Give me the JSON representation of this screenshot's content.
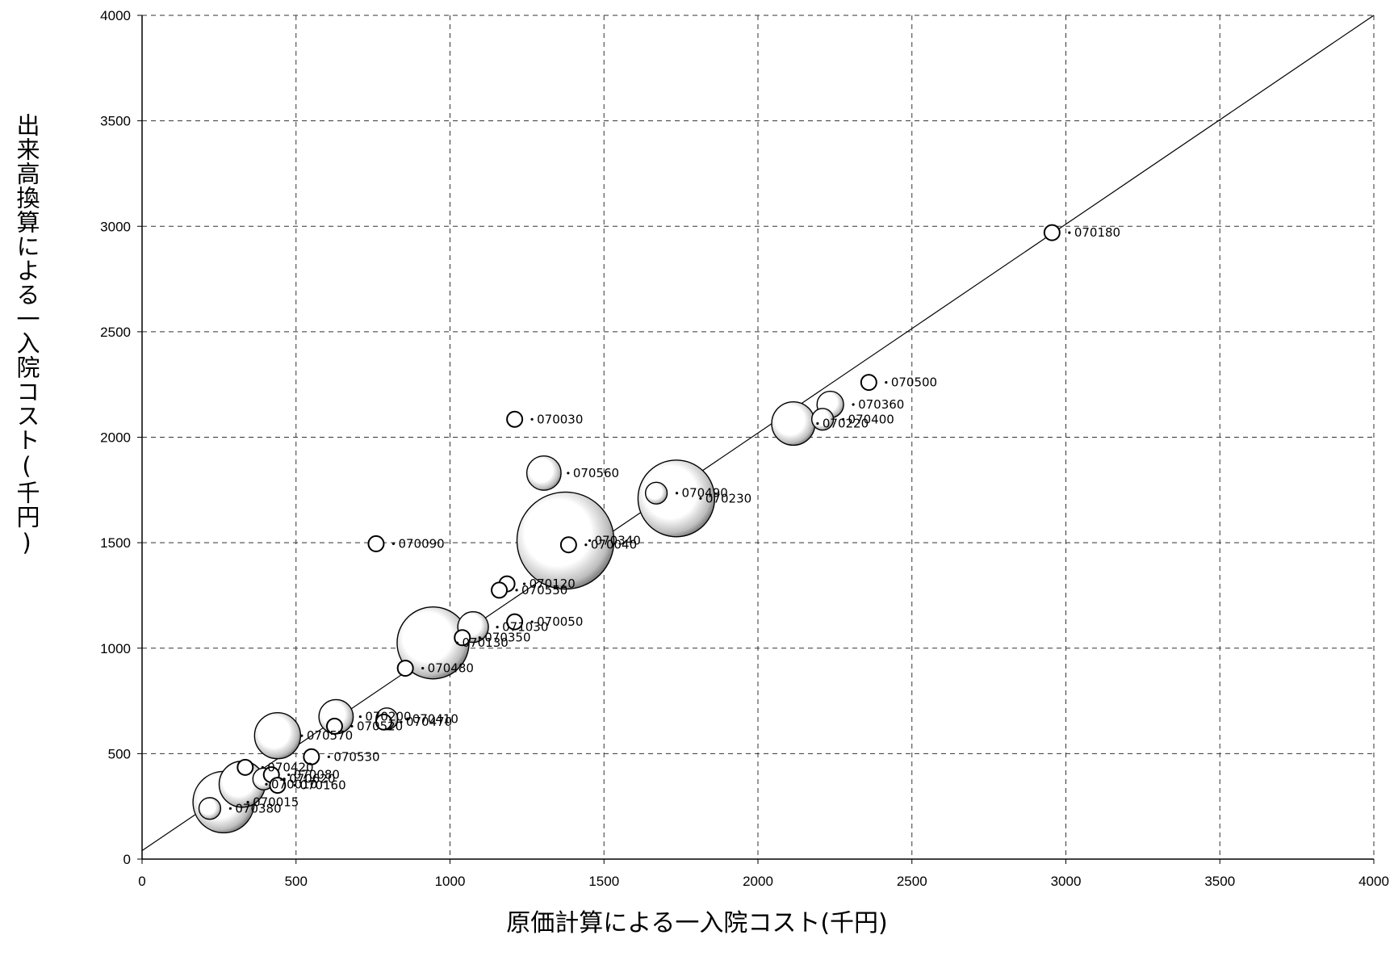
{
  "chart_data": {
    "type": "scatter",
    "subtype": "bubble",
    "title": "",
    "xlabel": "原価計算による一入院コスト(千円)",
    "ylabel": "出来高換算による一入院コスト(千円)",
    "xlim": [
      0,
      4000
    ],
    "ylim": [
      0,
      4000
    ],
    "xticks": [
      "0",
      "500",
      "1000",
      "1500",
      "2000",
      "2500",
      "3000",
      "3500",
      "4000"
    ],
    "yticks": [
      "0",
      "500",
      "1000",
      "1500",
      "2000",
      "2500",
      "3000",
      "3500",
      "4000"
    ],
    "grid": true,
    "reference_line": {
      "from": [
        0,
        40
      ],
      "to": [
        4000,
        4000
      ]
    },
    "points": [
      {
        "label": "070180",
        "x": 2955,
        "y": 2970,
        "size": 1
      },
      {
        "label": "070500",
        "x": 2360,
        "y": 2260,
        "size": 1
      },
      {
        "label": "070360",
        "x": 2235,
        "y": 2155,
        "size": 3
      },
      {
        "label": "070400",
        "x": 2210,
        "y": 2085,
        "size": 2
      },
      {
        "label": "070220",
        "x": 2115,
        "y": 2065,
        "size": 8
      },
      {
        "label": "070030",
        "x": 1210,
        "y": 2085,
        "size": 1
      },
      {
        "label": "070560",
        "x": 1305,
        "y": 1830,
        "size": 5
      },
      {
        "label": "070490",
        "x": 1670,
        "y": 1735,
        "size": 2
      },
      {
        "label": "070230",
        "x": 1735,
        "y": 1710,
        "size": 25
      },
      {
        "label": "070090",
        "x": 760,
        "y": 1495,
        "size": 1
      },
      {
        "label": "070340",
        "x": 1375,
        "y": 1510,
        "size": 40
      },
      {
        "label": "070040",
        "x": 1385,
        "y": 1490,
        "size": 1
      },
      {
        "label": "070120",
        "x": 1185,
        "y": 1305,
        "size": 1
      },
      {
        "label": "070550",
        "x": 1160,
        "y": 1275,
        "size": 1
      },
      {
        "label": "070050",
        "x": 1210,
        "y": 1125,
        "size": 1
      },
      {
        "label": "071030",
        "x": 1075,
        "y": 1100,
        "size": 4
      },
      {
        "label": "070350",
        "x": 1040,
        "y": 1050,
        "size": 1
      },
      {
        "label": "070130",
        "x": 945,
        "y": 1025,
        "size": 22
      },
      {
        "label": "070480",
        "x": 855,
        "y": 905,
        "size": 1
      },
      {
        "label": "070410",
        "x": 795,
        "y": 665,
        "size": 2
      },
      {
        "label": "070470",
        "x": 785,
        "y": 650,
        "size": 1
      },
      {
        "label": "070200",
        "x": 630,
        "y": 675,
        "size": 5
      },
      {
        "label": "070520",
        "x": 625,
        "y": 630,
        "size": 1
      },
      {
        "label": "070570",
        "x": 440,
        "y": 585,
        "size": 9
      },
      {
        "label": "070530",
        "x": 550,
        "y": 485,
        "size": 1
      },
      {
        "label": "070420",
        "x": 335,
        "y": 435,
        "size": 1
      },
      {
        "label": "070080",
        "x": 420,
        "y": 400,
        "size": 1
      },
      {
        "label": "070620",
        "x": 395,
        "y": 380,
        "size": 2
      },
      {
        "label": "070160",
        "x": 440,
        "y": 350,
        "size": 1
      },
      {
        "label": "070010",
        "x": 325,
        "y": 355,
        "size": 9
      },
      {
        "label": "070015",
        "x": 265,
        "y": 270,
        "size": 16
      },
      {
        "label": "070380",
        "x": 220,
        "y": 240,
        "size": 2
      }
    ],
    "label_overrides": {
      "070570": "070570"
    }
  },
  "visible_labels": {
    "070570": "070570"
  }
}
